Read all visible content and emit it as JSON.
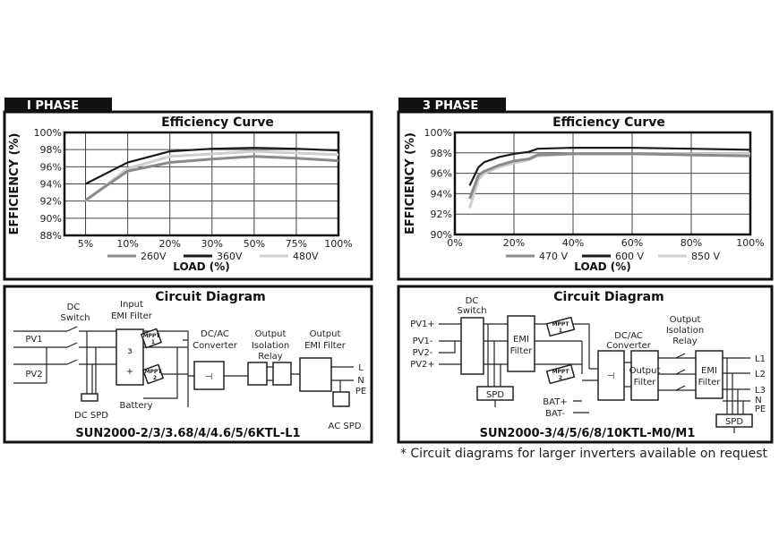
{
  "panels": {
    "left": {
      "tab": "I PHASE"
    },
    "right": {
      "tab": "3 PHASE"
    }
  },
  "chart_data": [
    {
      "type": "line",
      "title": "Efficiency Curve",
      "xlabel": "LOAD (%)",
      "ylabel": "EFFICIENCY (%)",
      "x_scale": "categorical",
      "categories": [
        "5%",
        "10%",
        "20%",
        "30%",
        "50%",
        "75%",
        "100%"
      ],
      "yticks": [
        "88%",
        "90%",
        "92%",
        "94%",
        "96%",
        "98%",
        "100%"
      ],
      "ylim": [
        88,
        100
      ],
      "grid": true,
      "legend_position": "bottom",
      "series": [
        {
          "name": "260V",
          "color": "#8a8a8a",
          "values": [
            92.1,
            95.5,
            96.5,
            96.9,
            97.2,
            97.0,
            96.7
          ]
        },
        {
          "name": "360V",
          "color": "#1a1a1a",
          "values": [
            94.0,
            96.5,
            97.8,
            98.1,
            98.2,
            98.1,
            97.9
          ]
        },
        {
          "name": "480V",
          "color": "#cfcfcf",
          "values": [
            92.0,
            95.8,
            97.2,
            97.5,
            97.8,
            97.6,
            97.4
          ]
        }
      ]
    },
    {
      "type": "line",
      "title": "Efficiency Curve",
      "xlabel": "LOAD (%)",
      "ylabel": "EFFICIENCY (%)",
      "x_scale": "linear",
      "xlim": [
        0,
        100
      ],
      "xticks": [
        "0%",
        "20%",
        "40%",
        "60%",
        "80%",
        "100%"
      ],
      "yticks": [
        "90%",
        "92%",
        "94%",
        "96%",
        "98%",
        "100%"
      ],
      "ylim": [
        90,
        100
      ],
      "grid": true,
      "legend_position": "bottom",
      "x": [
        5,
        8,
        10,
        15,
        20,
        25,
        28,
        40,
        60,
        80,
        100
      ],
      "series": [
        {
          "name": "470 V",
          "color": "#8a8a8a",
          "values": [
            93.5,
            95.8,
            96.2,
            96.8,
            97.2,
            97.4,
            97.8,
            97.9,
            97.9,
            97.8,
            97.7
          ]
        },
        {
          "name": "600 V",
          "color": "#1a1a1a",
          "values": [
            94.8,
            96.6,
            97.1,
            97.6,
            97.9,
            98.1,
            98.4,
            98.5,
            98.5,
            98.4,
            98.3
          ]
        },
        {
          "name": "850 V",
          "color": "#cfcfcf",
          "values": [
            92.6,
            95.4,
            96.0,
            96.6,
            97.0,
            97.3,
            97.7,
            97.9,
            97.9,
            97.9,
            97.9
          ]
        }
      ]
    }
  ],
  "circuit_left": {
    "title": "Circuit Diagram",
    "dc_switch": [
      "DC",
      "Switch"
    ],
    "input_emi": [
      "Input",
      "EMI Filter"
    ],
    "pv1": "PV1",
    "pv2": "PV2",
    "mppt1": [
      "MPPT",
      "1"
    ],
    "mppt2": [
      "MPPT",
      "2"
    ],
    "dcac": [
      "DC/AC",
      "Converter"
    ],
    "relay": [
      "Output",
      "Isolation",
      "Relay"
    ],
    "out_emi": [
      "Output",
      "EMI Filter"
    ],
    "l": "L",
    "n": "N",
    "pe": "PE",
    "battery": "Battery",
    "dc_spd": "DC SPD",
    "ac_spd": "AC SPD",
    "model": "SUN2000-2/3/3.68/4/4.6/5/6KTL-L1"
  },
  "circuit_right": {
    "title": "Circuit Diagram",
    "dc_switch": [
      "DC",
      "Switch"
    ],
    "pv": [
      "PV1+",
      "PV1-",
      "PV2-",
      "PV2+"
    ],
    "emi": [
      "EMI",
      "Filter"
    ],
    "mppt1": [
      "MPPT",
      "1"
    ],
    "mppt2": [
      "MPPT",
      "2"
    ],
    "dcac": [
      "DC/AC",
      "Converter"
    ],
    "out_filter": [
      "Output",
      "Filter"
    ],
    "relay": [
      "Output",
      "Isolation",
      "Relay"
    ],
    "emi2": [
      "EMI",
      "Filter"
    ],
    "outputs": [
      "L1",
      "L2",
      "L3",
      "N",
      "PE"
    ],
    "spd_dc": "SPD",
    "spd_ac": "SPD",
    "bat": [
      "BAT+",
      "BAT-"
    ],
    "model": "SUN2000-3/4/5/6/8/10KTL-M0/M1"
  },
  "footnote": "* Circuit diagrams for larger inverters available on request"
}
